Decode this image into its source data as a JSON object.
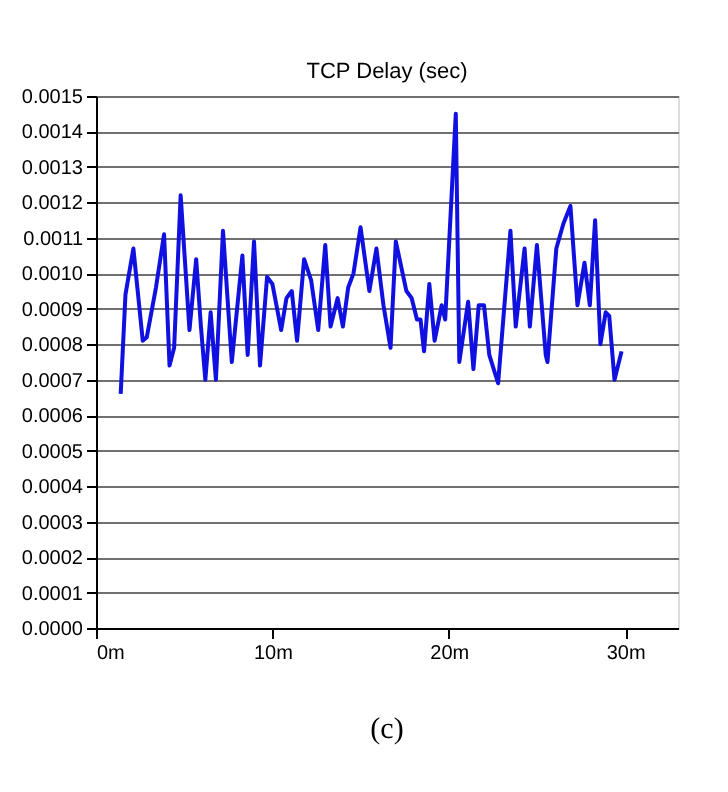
{
  "chart_data": {
    "type": "line",
    "title": "TCP Delay (sec)",
    "x": [
      1.4,
      1.67,
      2.12,
      2.65,
      2.88,
      3.4,
      3.86,
      4.17,
      4.43,
      4.8,
      5.3,
      5.68,
      5.95,
      6.2,
      6.5,
      6.8,
      7.2,
      7.7,
      8.3,
      8.6,
      8.96,
      9.3,
      9.7,
      10.0,
      10.5,
      10.8,
      11.1,
      11.4,
      11.8,
      12.2,
      12.6,
      13.0,
      13.3,
      13.7,
      14.0,
      14.3,
      14.6,
      15.0,
      15.5,
      15.9,
      16.3,
      16.7,
      17.0,
      17.6,
      17.9,
      18.2,
      18.4,
      18.6,
      18.9,
      19.2,
      19.6,
      19.8,
      20.4,
      20.6,
      21.1,
      21.4,
      21.7,
      22.0,
      22.3,
      22.8,
      23.5,
      23.8,
      24.3,
      24.6,
      25.0,
      25.5,
      25.6,
      26.1,
      26.5,
      26.9,
      27.3,
      27.7,
      28.0,
      28.3,
      28.6,
      28.9,
      29.1,
      29.4,
      29.8
    ],
    "series": [
      {
        "color": "#1010e0",
        "values": [
          0.00066,
          0.00094,
          0.00107,
          0.00081,
          0.00082,
          0.00096,
          0.00111,
          0.00074,
          0.00079,
          0.00122,
          0.00084,
          0.00104,
          0.00085,
          0.0007,
          0.00089,
          0.0007,
          0.00112,
          0.00075,
          0.00105,
          0.00077,
          0.00109,
          0.00074,
          0.00099,
          0.00097,
          0.00084,
          0.00093,
          0.00095,
          0.00081,
          0.00104,
          0.00098,
          0.00084,
          0.00108,
          0.00085,
          0.00093,
          0.00085,
          0.00096,
          0.001,
          0.00113,
          0.00095,
          0.00107,
          0.00091,
          0.00079,
          0.00109,
          0.00095,
          0.00093,
          0.00087,
          0.00087,
          0.00078,
          0.00097,
          0.00081,
          0.00091,
          0.00087,
          0.00145,
          0.00075,
          0.00092,
          0.00073,
          0.00091,
          0.00091,
          0.00077,
          0.00069,
          0.00112,
          0.00085,
          0.00107,
          0.00085,
          0.00108,
          0.00077,
          0.00075,
          0.00107,
          0.00114,
          0.00119,
          0.00091,
          0.00103,
          0.00091,
          0.00115,
          0.0008,
          0.00089,
          0.00088,
          0.0007,
          0.00078
        ]
      }
    ],
    "xlim": [
      0,
      33
    ],
    "xticks": [
      {
        "value": 0,
        "label": "0m"
      },
      {
        "value": 10,
        "label": "10m"
      },
      {
        "value": 20,
        "label": "20m"
      },
      {
        "value": 30,
        "label": "30m"
      }
    ],
    "ylim": [
      0,
      0.0015
    ],
    "yticks": [
      {
        "value": 0,
        "label": "0.0000"
      },
      {
        "value": 0.0001,
        "label": "0.0001"
      },
      {
        "value": 0.0002,
        "label": "0.0002"
      },
      {
        "value": 0.0003,
        "label": "0.0003"
      },
      {
        "value": 0.0004,
        "label": "0.0004"
      },
      {
        "value": 0.0005,
        "label": "0.0005"
      },
      {
        "value": 0.0006,
        "label": "0.0006"
      },
      {
        "value": 0.0007,
        "label": "0.0007"
      },
      {
        "value": 0.0008,
        "label": "0.0008"
      },
      {
        "value": 0.0009,
        "label": "0.0009"
      },
      {
        "value": 0.001,
        "label": "0.0010"
      },
      {
        "value": 0.0011,
        "label": "0.0011"
      },
      {
        "value": 0.0012,
        "label": "0.0012"
      },
      {
        "value": 0.0013,
        "label": "0.0013"
      },
      {
        "value": 0.0014,
        "label": "0.0014"
      },
      {
        "value": 0.0015,
        "label": "0.0015"
      }
    ],
    "grid": "y",
    "marker": "none",
    "line_style": "solid",
    "annotations": [
      "(c)"
    ]
  }
}
